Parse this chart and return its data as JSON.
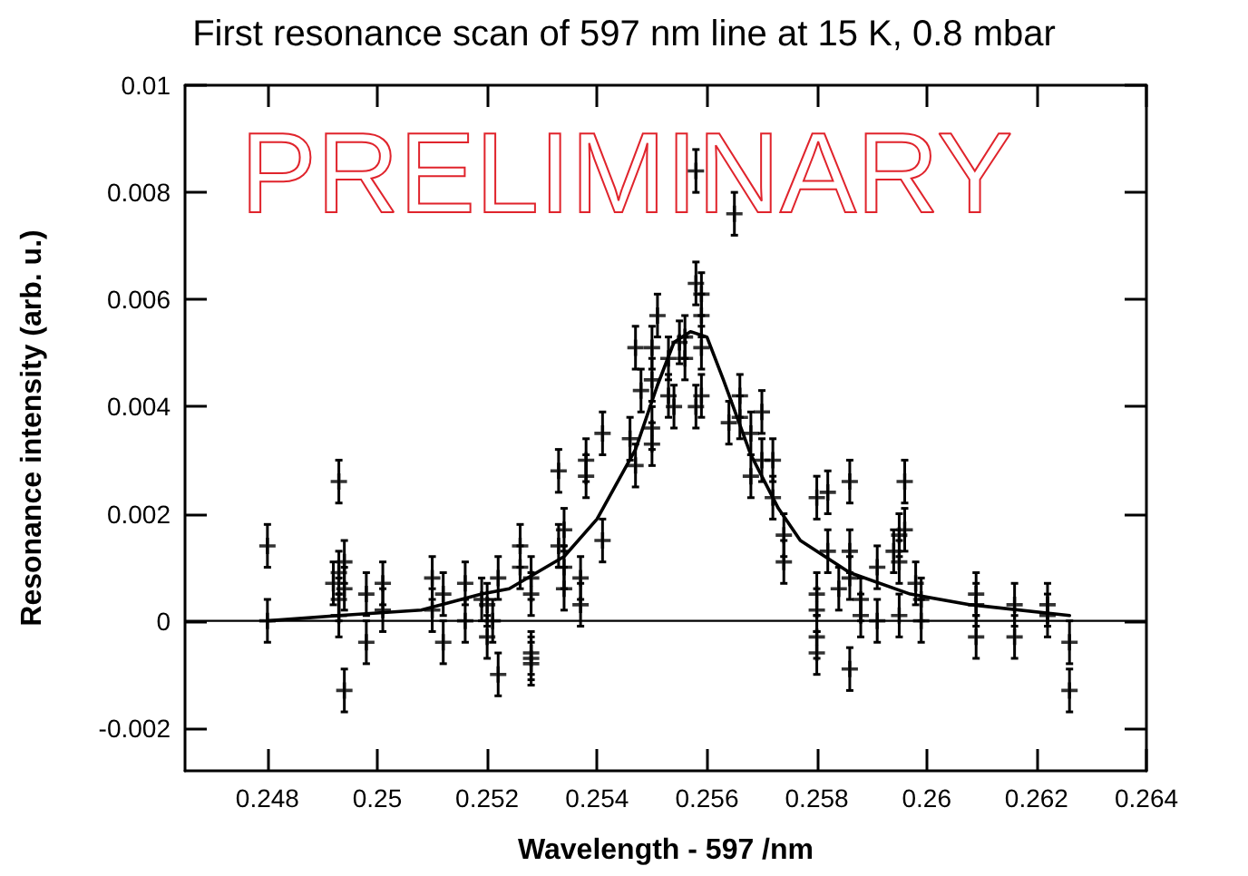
{
  "chart_data": {
    "type": "scatter",
    "title": "First resonance scan of 597 nm line at 15 K, 0.8 mbar",
    "xlabel": "Wavelength - 597 /nm",
    "ylabel": "Resonance intensity (arb. u.)",
    "annotations": [
      "PRELIMINARY"
    ],
    "xlim": [
      0.2465,
      0.264
    ],
    "xticks": [
      0.248,
      0.25,
      0.252,
      0.254,
      0.256,
      0.258,
      0.26,
      0.262,
      0.264
    ],
    "ylim": [
      -0.0028,
      0.01
    ],
    "yticks": [
      -0.002,
      0,
      0.002,
      0.004,
      0.006,
      0.008,
      0.01
    ],
    "grid": false,
    "ref_lines": [
      {
        "axis": "y",
        "value": 0,
        "color": "#000000"
      }
    ],
    "series": [
      {
        "color": "#000000",
        "marker": "cross",
        "x": [
          0.248,
          0.248,
          0.2493,
          0.2494,
          0.2492,
          0.2493,
          0.2493,
          0.2494,
          0.2494,
          0.2493,
          0.2498,
          0.2498,
          0.2501,
          0.2501,
          0.251,
          0.251,
          0.2512,
          0.2512,
          0.2516,
          0.2516,
          0.2519,
          0.252,
          0.2521,
          0.252,
          0.2522,
          0.2522,
          0.2526,
          0.2526,
          0.2528,
          0.2528,
          0.2528,
          0.2528,
          0.2528,
          0.2533,
          0.2533,
          0.2534,
          0.2534,
          0.2534,
          0.2537,
          0.2537,
          0.2538,
          0.2538,
          0.2541,
          0.2541,
          0.2546,
          0.2547,
          0.2547,
          0.2548,
          0.255,
          0.255,
          0.255,
          0.255,
          0.2551,
          0.2553,
          0.2553,
          0.2554,
          0.2555,
          0.2556,
          0.2556,
          0.2558,
          0.2558,
          0.2559,
          0.2559,
          0.2559,
          0.2559,
          0.2558,
          0.2565,
          0.2564,
          0.2566,
          0.2566,
          0.2568,
          0.2568,
          0.257,
          0.257,
          0.2572,
          0.2572,
          0.2574,
          0.2574,
          0.258,
          0.2582,
          0.2586,
          0.2596,
          0.2596,
          0.2582,
          0.2586,
          0.2584,
          0.258,
          0.258,
          0.258,
          0.258,
          0.2586,
          0.2588,
          0.2588,
          0.2586,
          0.2591,
          0.2591,
          0.2594,
          0.2595,
          0.2595,
          0.2595,
          0.2598,
          0.2599,
          0.2599,
          0.2609,
          0.2609,
          0.2609,
          0.2616,
          0.2616,
          0.2622,
          0.2622,
          0.2626,
          0.2626
        ],
        "values": [
          0.0014,
          0.0,
          0.0026,
          -0.0013,
          0.0007,
          0.0004,
          0.0009,
          0.0011,
          0.0006,
          0.0001,
          0.0005,
          -0.0004,
          0.0007,
          0.0002,
          0.0008,
          0.0002,
          0.0005,
          -0.0004,
          0.0007,
          0.0,
          0.0004,
          0.0003,
          0.0,
          -0.0003,
          0.0008,
          -0.001,
          0.0014,
          0.001,
          0.0008,
          0.0005,
          -0.0008,
          -0.0006,
          -0.0007,
          0.0028,
          0.0014,
          0.0017,
          0.001,
          0.0006,
          0.0008,
          0.0003,
          0.003,
          0.0027,
          0.0035,
          0.0015,
          0.0034,
          0.0029,
          0.0051,
          0.0043,
          0.0051,
          0.0045,
          0.0036,
          0.0033,
          0.0057,
          0.0049,
          0.0042,
          0.004,
          0.0052,
          0.0053,
          0.0049,
          0.0063,
          0.004,
          0.0061,
          0.0057,
          0.0042,
          0.0051,
          0.0084,
          0.0076,
          0.0037,
          0.0042,
          0.0038,
          0.0027,
          0.0035,
          0.0039,
          0.003,
          0.003,
          0.0023,
          0.0016,
          0.0011,
          0.0023,
          0.0024,
          0.0026,
          0.0026,
          0.0017,
          0.0013,
          0.0013,
          0.0006,
          0.0005,
          0.0002,
          -0.0003,
          -0.0006,
          0.0008,
          0.0004,
          0.0001,
          -0.0009,
          0.001,
          0.0,
          0.0013,
          0.0011,
          0.0016,
          0.0001,
          0.0007,
          0.0004,
          0.0,
          0.0005,
          -0.0003,
          0.0003,
          0.0003,
          -0.0003,
          0.0003,
          0.0001,
          -0.0004,
          -0.0013
        ],
        "errors": [
          0.0004,
          0.0004,
          0.0004,
          0.0004,
          0.0004,
          0.0004,
          0.0004,
          0.0004,
          0.0004,
          0.0004,
          0.0004,
          0.0004,
          0.0004,
          0.0004,
          0.0004,
          0.0004,
          0.0004,
          0.0004,
          0.0004,
          0.0004,
          0.0004,
          0.0004,
          0.0004,
          0.0004,
          0.0004,
          0.0004,
          0.0004,
          0.0004,
          0.0004,
          0.0004,
          0.0004,
          0.0004,
          0.0004,
          0.0004,
          0.0004,
          0.0004,
          0.0004,
          0.0004,
          0.0004,
          0.0004,
          0.0004,
          0.0004,
          0.0004,
          0.0004,
          0.0004,
          0.0004,
          0.0004,
          0.0004,
          0.0004,
          0.0004,
          0.0004,
          0.0004,
          0.0004,
          0.0004,
          0.0004,
          0.0004,
          0.0004,
          0.0004,
          0.0004,
          0.0004,
          0.0004,
          0.0004,
          0.0004,
          0.0004,
          0.0004,
          0.0004,
          0.0004,
          0.0004,
          0.0004,
          0.0004,
          0.0004,
          0.0004,
          0.0004,
          0.0004,
          0.0004,
          0.0004,
          0.0004,
          0.0004,
          0.0004,
          0.0004,
          0.0004,
          0.0004,
          0.0004,
          0.0004,
          0.0004,
          0.0004,
          0.0004,
          0.0004,
          0.0004,
          0.0004,
          0.0004,
          0.0004,
          0.0004,
          0.0004,
          0.0004,
          0.0004,
          0.0004,
          0.0004,
          0.0004,
          0.0004,
          0.0004,
          0.0004,
          0.0004,
          0.0004,
          0.0004,
          0.0004,
          0.0004,
          0.0004,
          0.0004,
          0.0004,
          0.0004,
          0.0004
        ]
      },
      {
        "type": "line",
        "color": "#000000",
        "line_style": "solid",
        "x": [
          0.248,
          0.2493,
          0.2508,
          0.2519,
          0.2524,
          0.2534,
          0.254,
          0.2547,
          0.2551,
          0.2554,
          0.2557,
          0.256,
          0.2563,
          0.2568,
          0.2573,
          0.2577,
          0.2586,
          0.2597,
          0.2608,
          0.2626
        ],
        "values": [
          0.0,
          0.0001,
          0.0002,
          0.0005,
          0.0006,
          0.0012,
          0.0019,
          0.0032,
          0.0044,
          0.0052,
          0.0054,
          0.0053,
          0.0045,
          0.0031,
          0.0021,
          0.0015,
          0.0009,
          0.0005,
          0.0003,
          0.0001
        ]
      }
    ]
  }
}
